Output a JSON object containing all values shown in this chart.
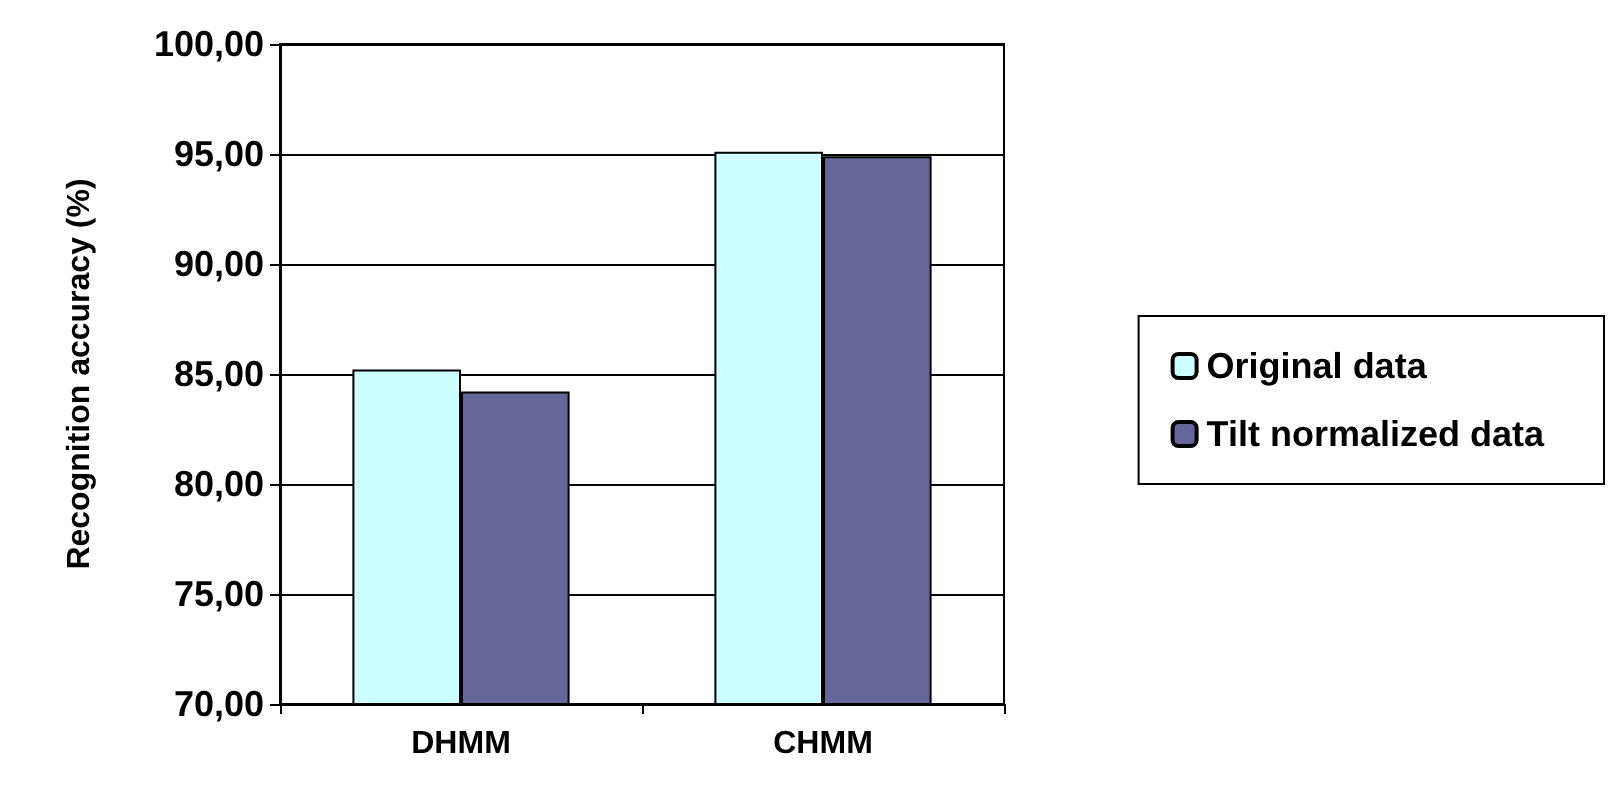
{
  "chart_data": {
    "type": "bar",
    "ylabel": "Recognition accuracy (%)",
    "categories": [
      "DHMM",
      "CHMM"
    ],
    "series": [
      {
        "name": "Original data",
        "color": "#ccffff",
        "values": [
          85.2,
          95.1
        ]
      },
      {
        "name": "Tilt normalized data",
        "color": "#666699",
        "values": [
          84.2,
          94.9
        ]
      }
    ],
    "ylim": [
      70,
      100
    ],
    "yticks": [
      {
        "value": 70,
        "label": "70,00"
      },
      {
        "value": 75,
        "label": "75,00"
      },
      {
        "value": 80,
        "label": "80,00"
      },
      {
        "value": 85,
        "label": "85,00"
      },
      {
        "value": 90,
        "label": "90,00"
      },
      {
        "value": 95,
        "label": "95,00"
      },
      {
        "value": 100,
        "label": "100,00"
      }
    ],
    "grid": "y",
    "legend": "right"
  }
}
